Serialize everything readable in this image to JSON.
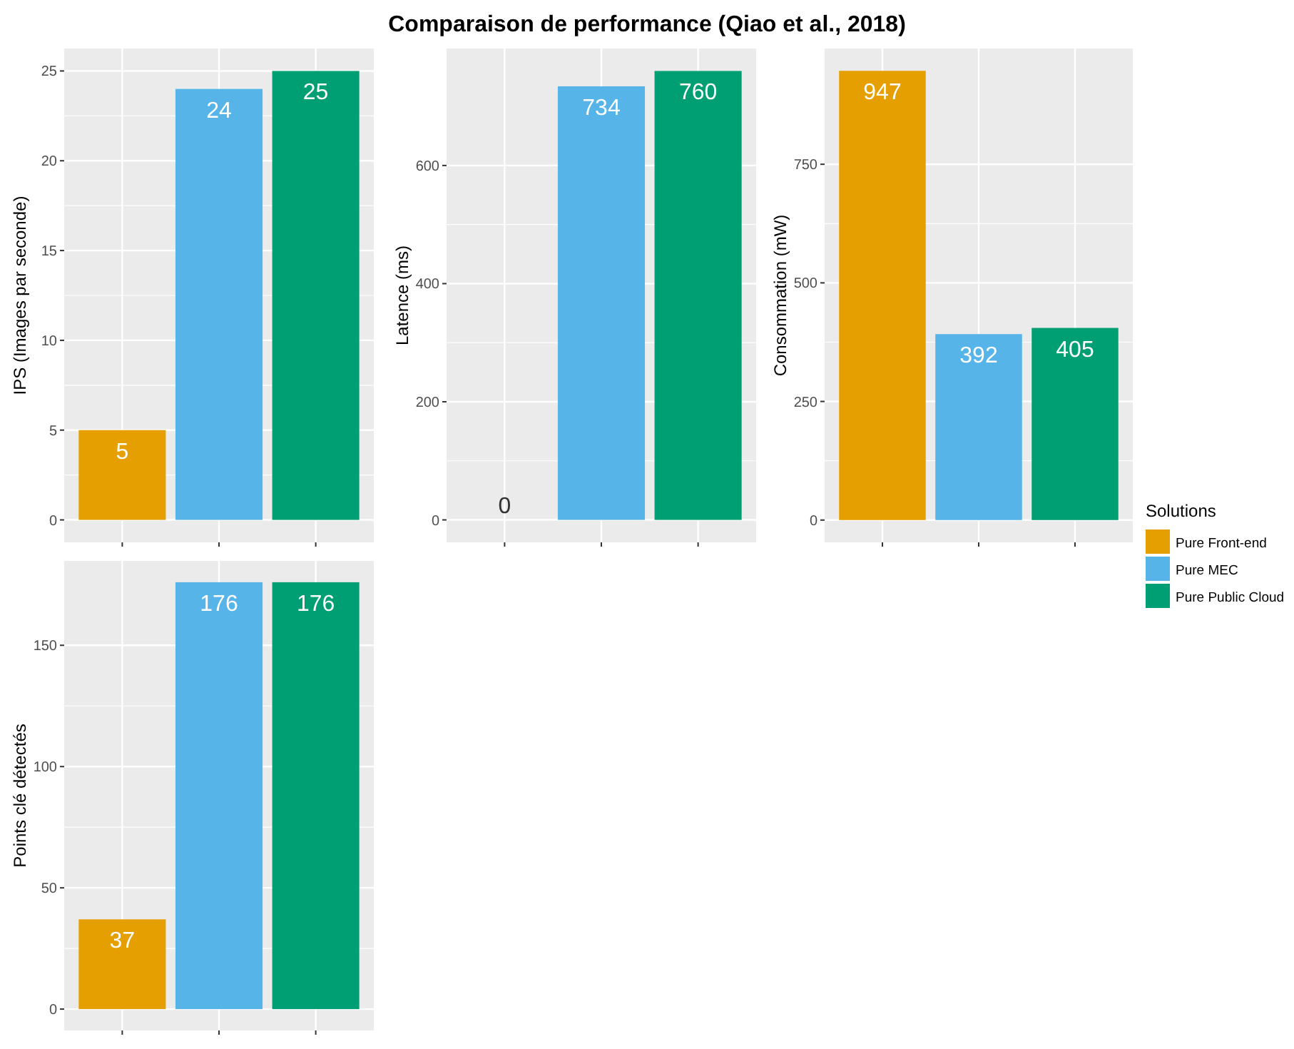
{
  "chart_data": [
    {
      "type": "bar",
      "ylabel": "IPS (Images par seconde)",
      "categories": [
        null,
        null,
        null
      ],
      "series": [
        {
          "color": "#e69f00",
          "values": [
            5,
            null,
            null
          ]
        },
        {
          "color": "#56b4e9",
          "values": [
            null,
            24,
            null
          ]
        },
        {
          "color": "#009e73",
          "values": [
            null,
            null,
            25
          ]
        }
      ],
      "ylim": [
        -1.25,
        26.25
      ],
      "yticks": [
        0,
        5,
        10,
        15,
        20,
        25
      ],
      "grid": true,
      "data_labels": true
    },
    {
      "type": "bar",
      "title": "Comparaison de performance (Qiao et al., 2018)",
      "ylabel": "Latence (ms)",
      "categories": [
        null,
        null,
        null
      ],
      "series": [
        {
          "color": "#e69f00",
          "values": [
            0,
            null,
            null
          ]
        },
        {
          "color": "#56b4e9",
          "values": [
            null,
            734,
            null
          ]
        },
        {
          "color": "#009e73",
          "values": [
            null,
            null,
            760
          ]
        }
      ],
      "ylim": [
        -38,
        798
      ],
      "yticks": [
        0,
        200,
        400,
        600
      ],
      "grid": true,
      "data_labels": true
    },
    {
      "type": "bar",
      "ylabel": "Consommation (mW)",
      "legend_title": "Solutions",
      "legend": "right",
      "categories": [
        null,
        null,
        null
      ],
      "series": [
        {
          "name": "Pure Front-end",
          "color": "#e69f00",
          "values": [
            947,
            null,
            null
          ]
        },
        {
          "name": "Pure MEC",
          "color": "#56b4e9",
          "values": [
            null,
            392,
            null
          ]
        },
        {
          "name": "Pure Public Cloud",
          "color": "#009e73",
          "values": [
            null,
            null,
            405
          ]
        }
      ],
      "ylim": [
        -47,
        994
      ],
      "yticks": [
        0,
        250,
        500,
        750
      ],
      "grid": true,
      "data_labels": true
    },
    {
      "type": "bar",
      "ylabel": "Points clé détectés",
      "categories": [
        null,
        null,
        null
      ],
      "series": [
        {
          "color": "#e69f00",
          "values": [
            37,
            null,
            null
          ]
        },
        {
          "color": "#56b4e9",
          "values": [
            null,
            176,
            null
          ]
        },
        {
          "color": "#009e73",
          "values": [
            null,
            null,
            176
          ]
        }
      ],
      "ylim": [
        -8.8,
        184.8
      ],
      "yticks": [
        0,
        50,
        100,
        150
      ],
      "grid": true,
      "data_labels": true
    }
  ]
}
